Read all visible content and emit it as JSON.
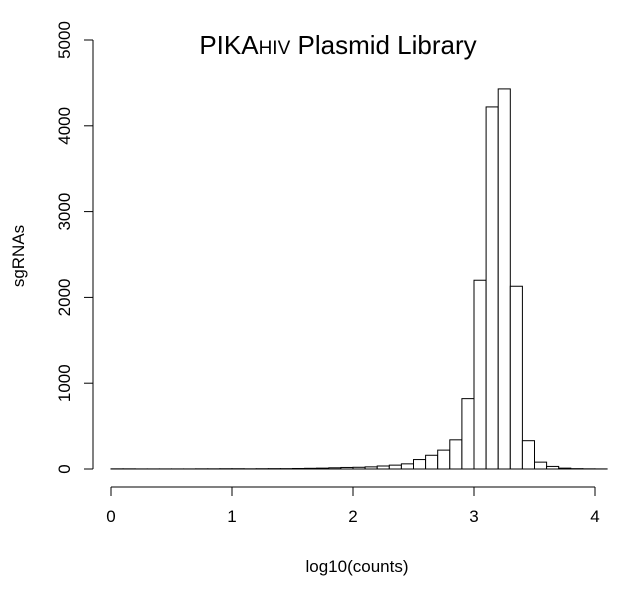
{
  "chart_data": {
    "type": "bar",
    "title": {
      "main": "PIKA",
      "sub": "HIV",
      "rest": " Plasmid Library"
    },
    "xlabel": "log10(counts)",
    "ylabel": "sgRNAs",
    "xlim": [
      0,
      4.1
    ],
    "ylim": [
      0,
      5000
    ],
    "xticks": [
      "0",
      "1",
      "2",
      "3",
      "4"
    ],
    "yticks": [
      "0",
      "1000",
      "2000",
      "3000",
      "4000",
      "5000"
    ],
    "grid": false,
    "legend": "none",
    "bar_fill": "#ffffff",
    "bar_stroke": "#000000",
    "bin_width": 0.1,
    "bins": [
      {
        "x0": 0.0,
        "value": 2
      },
      {
        "x0": 0.1,
        "value": 2
      },
      {
        "x0": 0.2,
        "value": 1
      },
      {
        "x0": 0.3,
        "value": 1
      },
      {
        "x0": 0.4,
        "value": 1
      },
      {
        "x0": 0.5,
        "value": 1
      },
      {
        "x0": 0.6,
        "value": 1
      },
      {
        "x0": 0.7,
        "value": 2
      },
      {
        "x0": 0.8,
        "value": 2
      },
      {
        "x0": 0.9,
        "value": 3
      },
      {
        "x0": 1.0,
        "value": 3
      },
      {
        "x0": 1.1,
        "value": 2
      },
      {
        "x0": 1.2,
        "value": 3
      },
      {
        "x0": 1.3,
        "value": 4
      },
      {
        "x0": 1.4,
        "value": 4
      },
      {
        "x0": 1.5,
        "value": 6
      },
      {
        "x0": 1.6,
        "value": 8
      },
      {
        "x0": 1.7,
        "value": 10
      },
      {
        "x0": 1.8,
        "value": 14
      },
      {
        "x0": 1.9,
        "value": 18
      },
      {
        "x0": 2.0,
        "value": 20
      },
      {
        "x0": 2.1,
        "value": 25
      },
      {
        "x0": 2.2,
        "value": 35
      },
      {
        "x0": 2.3,
        "value": 45
      },
      {
        "x0": 2.4,
        "value": 60
      },
      {
        "x0": 2.5,
        "value": 110
      },
      {
        "x0": 2.6,
        "value": 160
      },
      {
        "x0": 2.7,
        "value": 220
      },
      {
        "x0": 2.8,
        "value": 340
      },
      {
        "x0": 2.9,
        "value": 820
      },
      {
        "x0": 3.0,
        "value": 2200
      },
      {
        "x0": 3.1,
        "value": 4220
      },
      {
        "x0": 3.2,
        "value": 4430
      },
      {
        "x0": 3.3,
        "value": 2130
      },
      {
        "x0": 3.4,
        "value": 330
      },
      {
        "x0": 3.5,
        "value": 80
      },
      {
        "x0": 3.6,
        "value": 30
      },
      {
        "x0": 3.7,
        "value": 10
      },
      {
        "x0": 3.8,
        "value": 4
      },
      {
        "x0": 3.9,
        "value": 2
      },
      {
        "x0": 4.0,
        "value": 1
      }
    ]
  }
}
